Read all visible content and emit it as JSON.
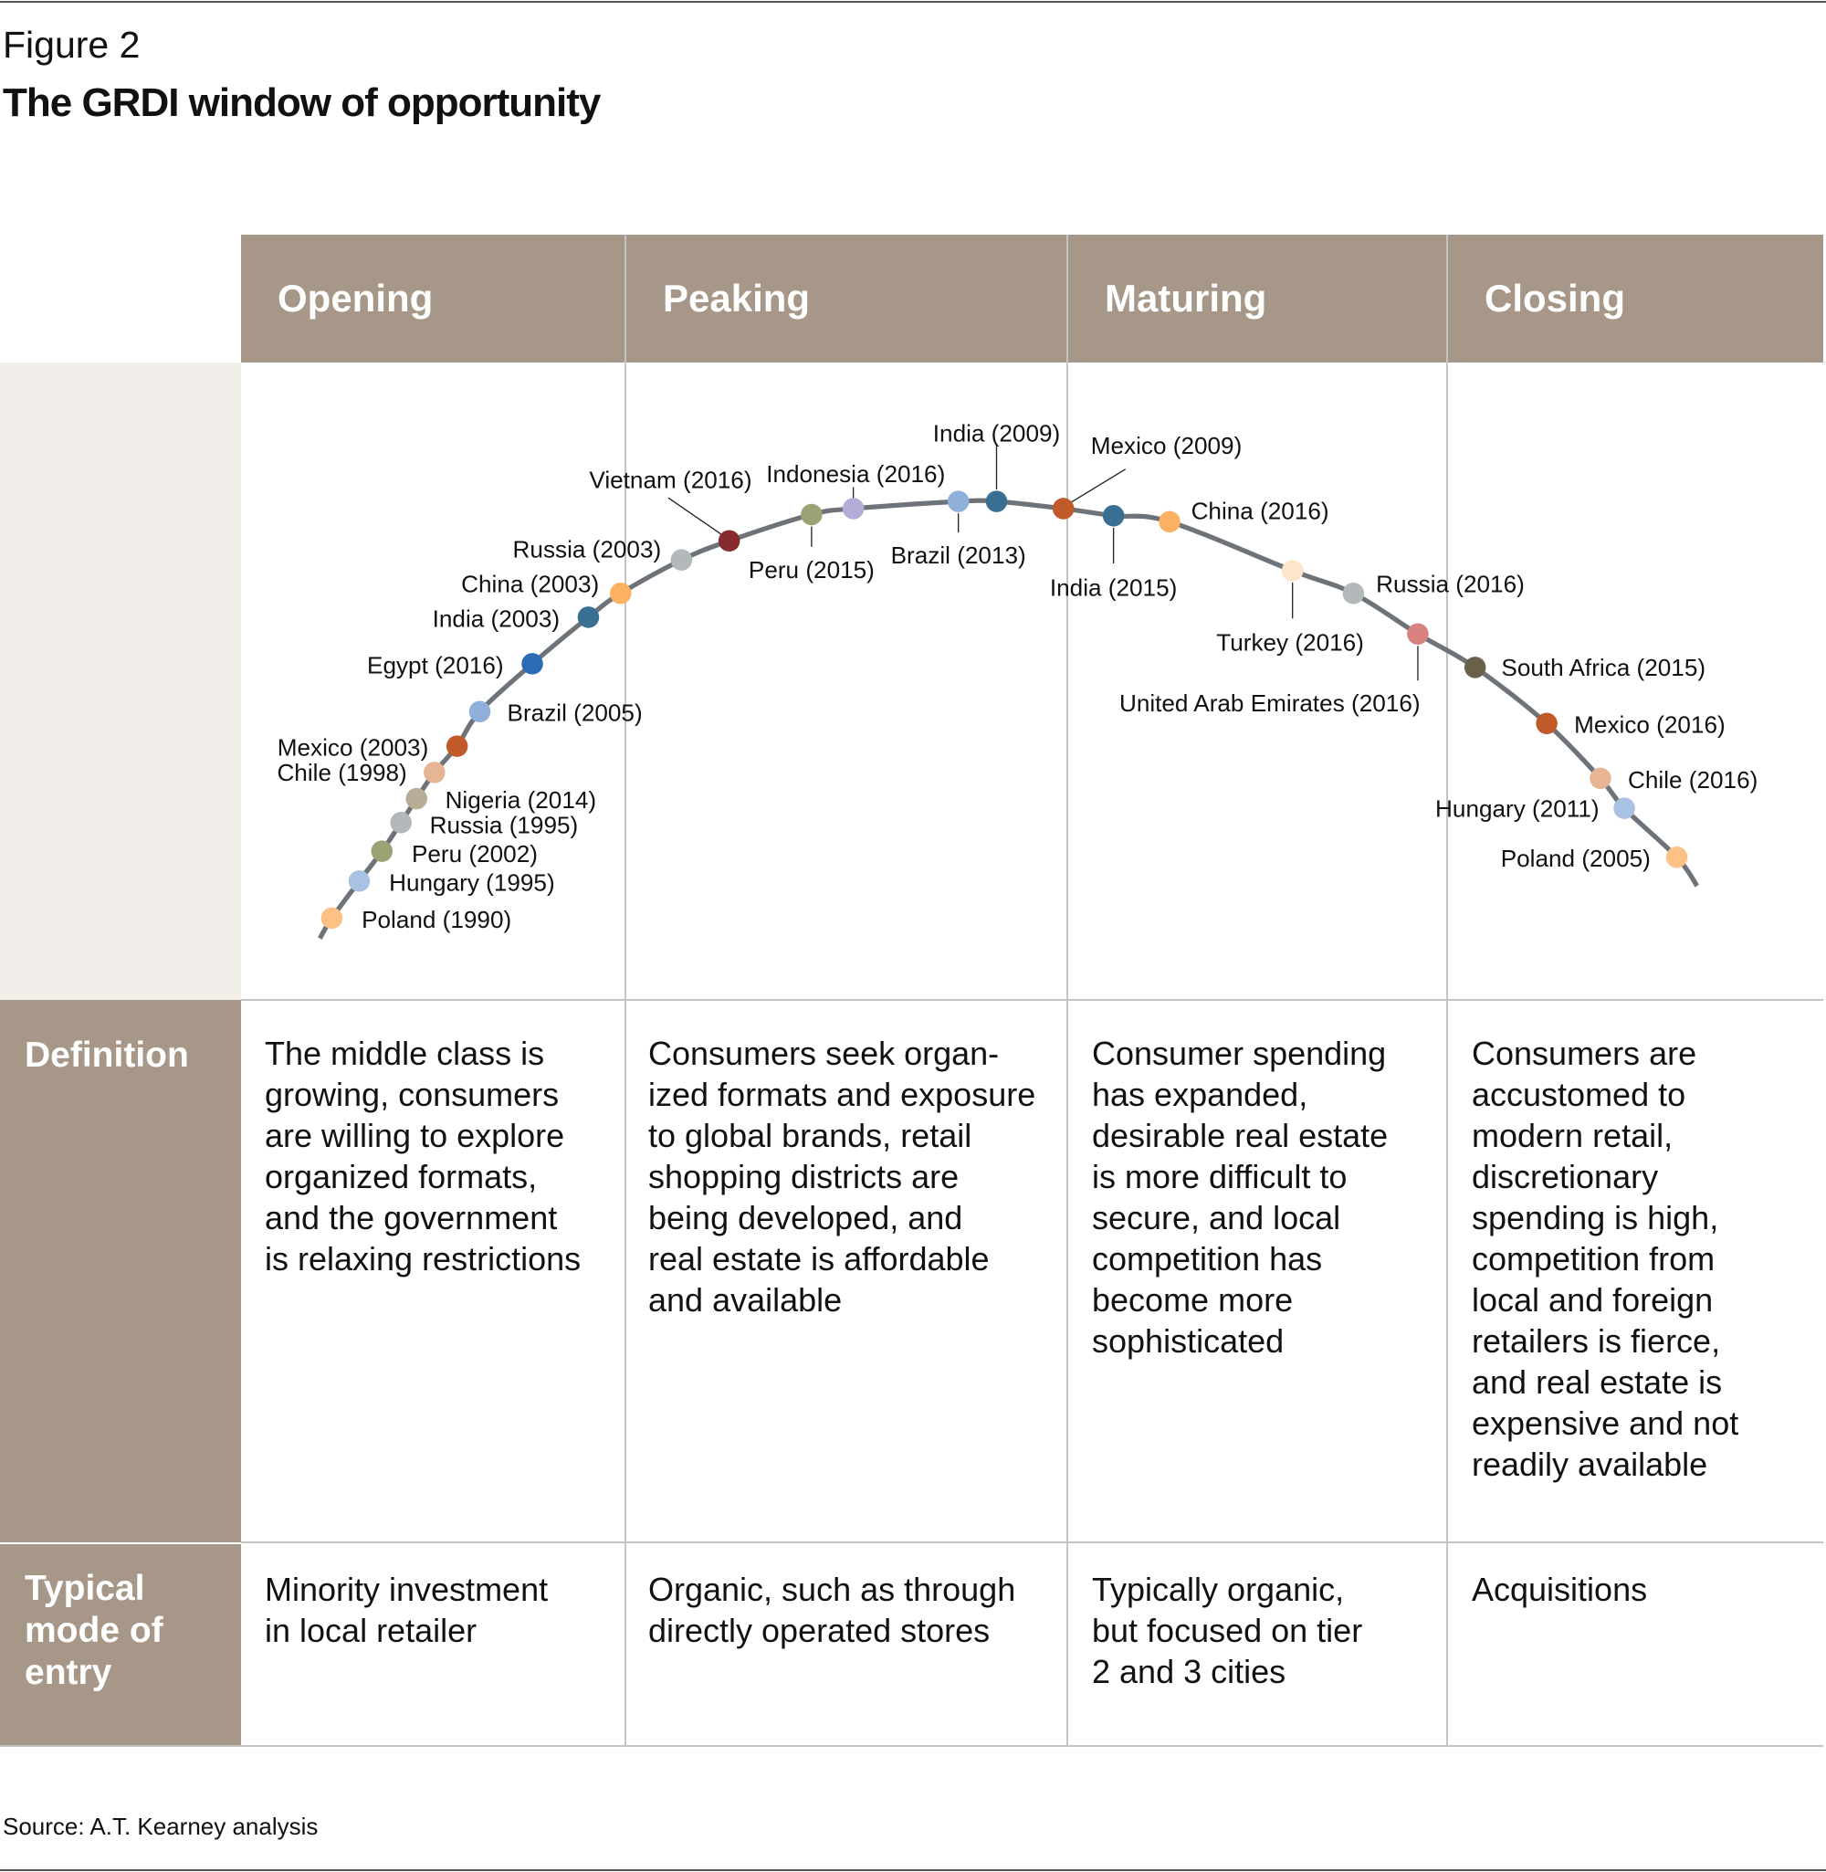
{
  "figure_label": "Figure 2",
  "title": "The GRDI window of opportunity",
  "stages": [
    "Opening",
    "Peaking",
    "Maturing",
    "Closing"
  ],
  "rows": {
    "definition": {
      "label": [
        "Definition"
      ],
      "cells": [
        [
          "The middle class is",
          "growing, consumers",
          "are willing to explore",
          "organized formats,",
          "and the government",
          "is relaxing restrictions"
        ],
        [
          "Consumers seek organ-",
          "ized formats and exposure",
          "to global brands, retail",
          "shopping districts are",
          "being developed, and",
          "real estate is affordable",
          "and available"
        ],
        [
          "Consumer spending",
          "has expanded,",
          "desirable real estate",
          "is more difficult to",
          "secure, and local",
          "competition has",
          "become more",
          "sophisticated"
        ],
        [
          "Consumers are",
          "accustomed to",
          "modern retail,",
          "discretionary",
          "spending is high,",
          "competition from",
          "local and foreign",
          "retailers is fierce,",
          "and real estate is",
          "expensive and not",
          "readily available"
        ]
      ]
    },
    "mode_of_entry": {
      "label": [
        "Typical",
        "mode of",
        "entry"
      ],
      "cells": [
        [
          "Minority investment",
          "in local retailer"
        ],
        [
          "Organic, such as through",
          "directly operated stores"
        ],
        [
          "Typically organic,",
          "but focused on tier",
          "2 and 3 cities"
        ],
        [
          "Acquisitions"
        ]
      ]
    }
  },
  "countries": [
    {
      "label": "Poland (1990)",
      "stage": "Opening",
      "color": "#fdc185"
    },
    {
      "label": "Hungary (1995)",
      "stage": "Opening",
      "color": "#a9c1e3"
    },
    {
      "label": "Peru (2002)",
      "stage": "Opening",
      "color": "#9da275"
    },
    {
      "label": "Russia (1995)",
      "stage": "Opening",
      "color": "#b3b8bb"
    },
    {
      "label": "Nigeria (2014)",
      "stage": "Opening",
      "color": "#b8ad97"
    },
    {
      "label": "Chile (1998)",
      "stage": "Opening",
      "color": "#e7b594"
    },
    {
      "label": "Mexico (2003)",
      "stage": "Opening",
      "color": "#c05a28"
    },
    {
      "label": "Brazil (2005)",
      "stage": "Opening",
      "color": "#8fb0da"
    },
    {
      "label": "Egypt (2016)",
      "stage": "Opening",
      "color": "#2a6db5"
    },
    {
      "label": "India (2003)",
      "stage": "Opening",
      "color": "#386f92"
    },
    {
      "label": "China (2003)",
      "stage": "Opening",
      "color": "#fbb062"
    },
    {
      "label": "Russia (2003)",
      "stage": "Peaking",
      "color": "#b3b8bb"
    },
    {
      "label": "Vietnam (2016)",
      "stage": "Peaking",
      "color": "#862b2d"
    },
    {
      "label": "Peru (2015)",
      "stage": "Peaking",
      "color": "#9da275"
    },
    {
      "label": "Indonesia (2016)",
      "stage": "Peaking",
      "color": "#b3acd6"
    },
    {
      "label": "Brazil (2013)",
      "stage": "Peaking",
      "color": "#8fb0da"
    },
    {
      "label": "India (2009)",
      "stage": "Peaking",
      "color": "#386f92"
    },
    {
      "label": "Mexico (2009)",
      "stage": "Maturing",
      "color": "#c05a28"
    },
    {
      "label": "India (2015)",
      "stage": "Maturing",
      "color": "#386f92"
    },
    {
      "label": "China (2016)",
      "stage": "Maturing",
      "color": "#fbb062"
    },
    {
      "label": "Turkey (2016)",
      "stage": "Maturing",
      "color": "#fde5cc"
    },
    {
      "label": "Russia (2016)",
      "stage": "Maturing",
      "color": "#b3b8bb"
    },
    {
      "label": "United Arab Emirates (2016)",
      "stage": "Maturing",
      "color": "#d98080"
    },
    {
      "label": "South Africa (2015)",
      "stage": "Closing",
      "color": "#6b604c"
    },
    {
      "label": "Mexico (2016)",
      "stage": "Closing",
      "color": "#c05a28"
    },
    {
      "label": "Chile (2016)",
      "stage": "Closing",
      "color": "#e7b594"
    },
    {
      "label": "Hungary (2011)",
      "stage": "Closing",
      "color": "#a9c1e3"
    },
    {
      "label": "Poland (2005)",
      "stage": "Closing",
      "color": "#fdc185"
    }
  ],
  "colors": {
    "header": "#a69788",
    "left_panel": "#f2efea",
    "curve": "#6d7379"
  },
  "source": "Source: A.T. Kearney analysis"
}
